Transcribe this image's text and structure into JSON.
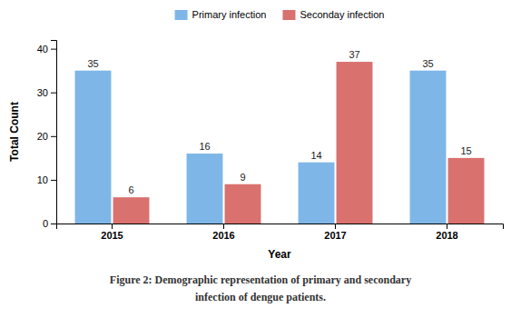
{
  "chart_data": {
    "type": "bar",
    "categories": [
      "2015",
      "2016",
      "2017",
      "2018"
    ],
    "series": [
      {
        "name": "Primary infection",
        "color": "#7EB6E8",
        "values": [
          35,
          16,
          14,
          35
        ]
      },
      {
        "name": "Seconday infection",
        "color": "#D9716E",
        "values": [
          6,
          9,
          37,
          15
        ]
      }
    ],
    "xlabel": "Year",
    "ylabel": "Total Count",
    "ylim": [
      0,
      42
    ],
    "yticks": [
      0,
      10,
      20,
      30,
      40
    ],
    "data_labels": true,
    "legend": "top",
    "grid": false,
    "annotations": [
      "Figure 2: Demographic representation of primary and secondary",
      "infection of dengue patients."
    ]
  }
}
